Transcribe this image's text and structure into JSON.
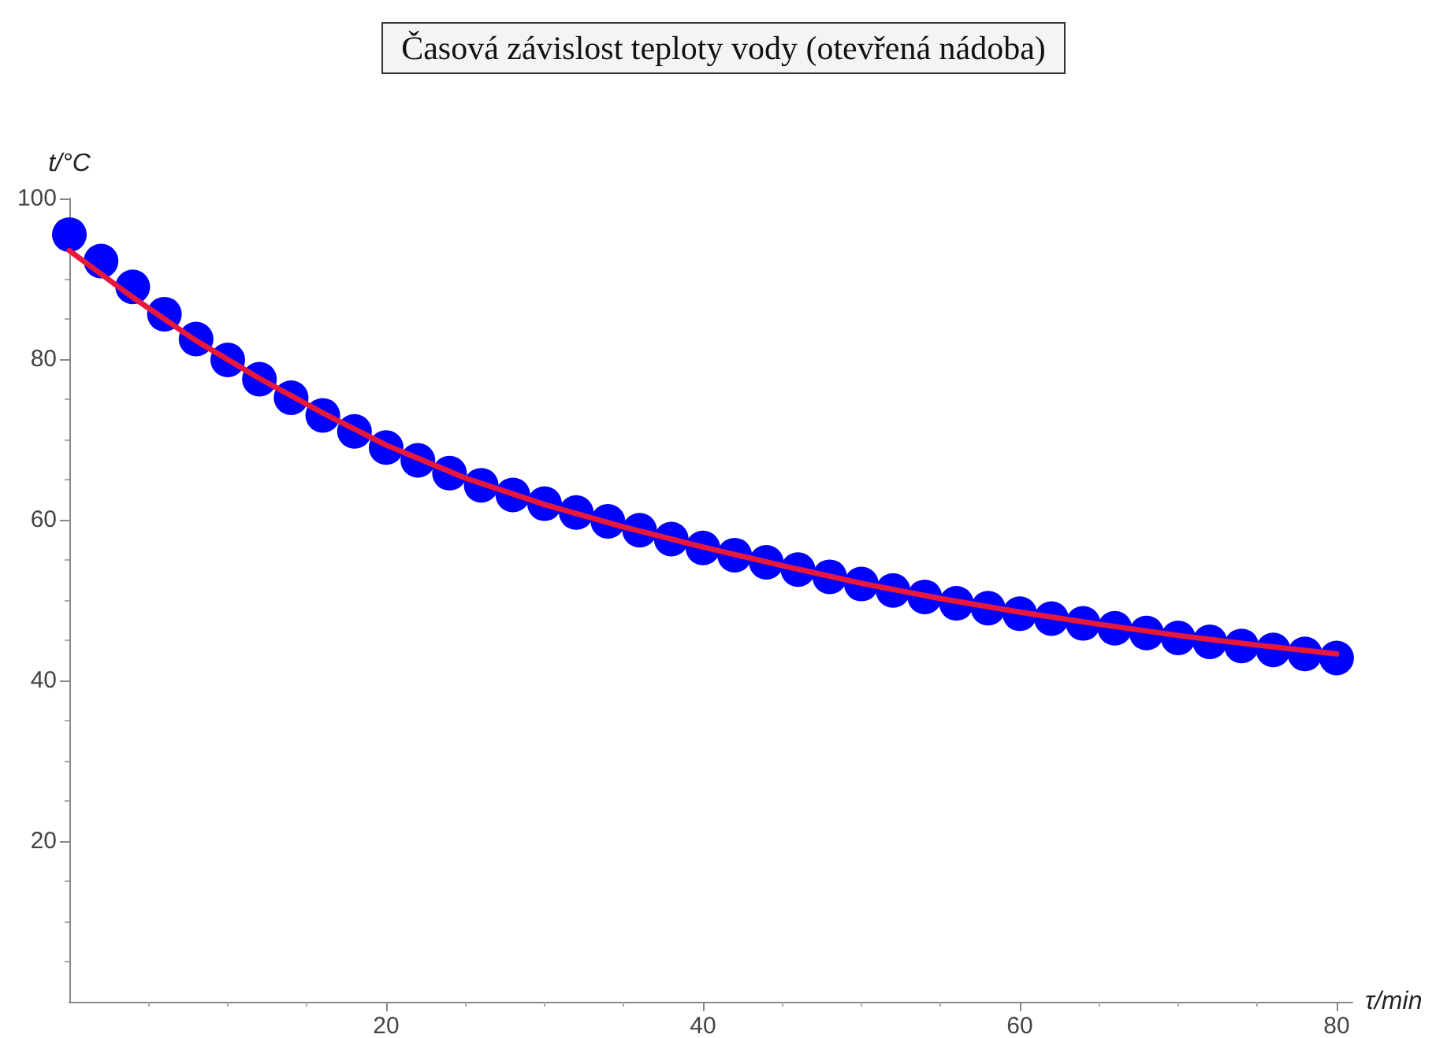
{
  "chart_data": {
    "type": "scatter",
    "title": "Časová závislost teploty vody (otevřená nádoba)",
    "xlabel": "τ/min",
    "ylabel": "t/°C",
    "xlim": [
      0,
      81
    ],
    "ylim": [
      0,
      100
    ],
    "xticks": [
      20,
      40,
      60,
      80
    ],
    "yticks": [
      20,
      40,
      60,
      80,
      100
    ],
    "grid": false,
    "marker": "circle",
    "series": [
      {
        "color": "#0000ff",
        "x": [
          0,
          2,
          4,
          6,
          8,
          10,
          12,
          14,
          16,
          18,
          20,
          22,
          24,
          26,
          28,
          30,
          32,
          34,
          36,
          38,
          40,
          42,
          44,
          46,
          48,
          50,
          52,
          54,
          56,
          58,
          60,
          62,
          64,
          66,
          68,
          70,
          72,
          74,
          76,
          78,
          80
        ],
        "values": [
          95.5,
          92.2,
          89,
          85.6,
          82.5,
          79.9,
          77.5,
          75.2,
          73,
          71,
          69,
          67.4,
          65.8,
          64.3,
          63.1,
          62,
          60.9,
          59.8,
          58.7,
          57.6,
          56.5,
          55.6,
          54.7,
          53.8,
          52.9,
          52,
          51.2,
          50.4,
          49.6,
          49,
          48.3,
          47.7,
          47.1,
          46.5,
          45.9,
          45.3,
          44.8,
          44.3,
          43.8,
          43.3,
          42.8
        ]
      },
      {
        "type": "line",
        "color": "#e8173c",
        "marker": "none",
        "x": [
          0,
          4,
          8,
          12,
          16,
          20,
          25,
          30,
          35,
          40,
          45,
          50,
          55,
          60,
          65,
          70,
          75,
          80
        ],
        "values": [
          93.5,
          87.7,
          82.3,
          77.6,
          73.3,
          69.3,
          65.2,
          61.9,
          59.1,
          56.6,
          54.3,
          52.1,
          50.2,
          48.5,
          47,
          45.6,
          44.4,
          43.3
        ]
      }
    ]
  }
}
